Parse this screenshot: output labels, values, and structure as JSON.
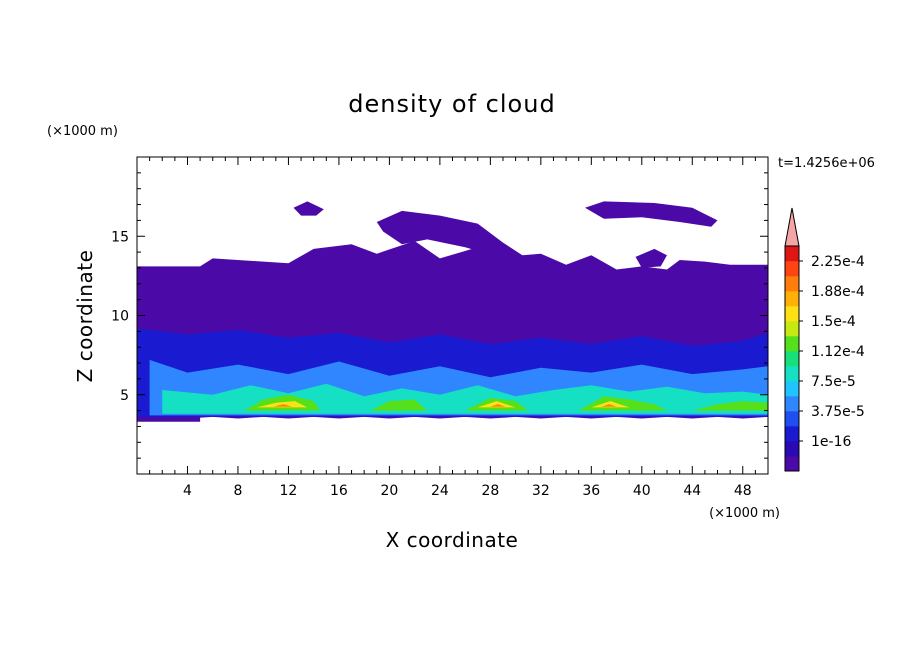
{
  "chart_data": {
    "type": "heatmap",
    "title": "density of cloud",
    "xlabel": "X coordinate",
    "ylabel": "Z coordinate",
    "x_unit": "(×1000 m)",
    "y_unit": "(×1000 m)",
    "time_label": "t=1.4256e+06",
    "xlim": [
      0,
      50
    ],
    "ylim": [
      0,
      20
    ],
    "xticks": [
      4,
      8,
      12,
      16,
      20,
      24,
      28,
      32,
      36,
      40,
      44,
      48
    ],
    "yticks": [
      5,
      10,
      15
    ],
    "colorbar": {
      "labels": [
        "2.25e-4",
        "1.88e-4",
        "1.5e-4",
        "1.12e-4",
        "7.5e-5",
        "3.75e-5",
        "1e-16"
      ],
      "colors": [
        "#4b0aa8",
        "#2a0ab4",
        "#1a1ad0",
        "#1f4ff0",
        "#2f86ff",
        "#21c4ff",
        "#16e0c4",
        "#17df7a",
        "#56e01c",
        "#c6e912",
        "#ffe012",
        "#ffb009",
        "#ff7d0a",
        "#ff4414",
        "#e01616"
      ],
      "over_color": "#f4a6a6"
    },
    "regions": [
      {
        "level": 0,
        "x": [
          0,
          0.5,
          1.5,
          3,
          3.5,
          3,
          5,
          6,
          12,
          14,
          17,
          19,
          22,
          24,
          27,
          29,
          32,
          34,
          36,
          38,
          40,
          42,
          43,
          45,
          47,
          50,
          50,
          48,
          46,
          44,
          42,
          40,
          38,
          36,
          34,
          32,
          30,
          28,
          26,
          24,
          22,
          20,
          18,
          16,
          14,
          12,
          10,
          8,
          6,
          4,
          3,
          2,
          1,
          0.5,
          0
        ],
        "y": [
          3.6,
          3.5,
          3.6,
          4.0,
          4.5,
          5.5,
          13.1,
          13.6,
          13.3,
          14.2,
          14.5,
          13.9,
          14.7,
          13.6,
          14.3,
          13.7,
          13.9,
          13.2,
          13.8,
          12.9,
          13.1,
          12.9,
          13.5,
          13.4,
          13.2,
          13.2,
          3.6,
          3.5,
          3.6,
          3.5,
          3.6,
          3.5,
          3.6,
          3.5,
          3.6,
          3.5,
          3.6,
          3.5,
          3.6,
          3.5,
          3.6,
          3.5,
          3.6,
          3.5,
          3.6,
          3.5,
          3.6,
          3.5,
          3.6,
          3.5,
          3.6,
          3.5,
          3.5,
          3.5,
          3.6
        ]
      },
      {
        "level": 0,
        "x": [
          0,
          5,
          5,
          0
        ],
        "y": [
          3.3,
          3.3,
          13.1,
          13.1
        ]
      },
      {
        "level": 0,
        "x": [
          12.4,
          13.5,
          14.8,
          14.2,
          13,
          12.4
        ],
        "y": [
          16.8,
          17.2,
          16.7,
          16.3,
          16.3,
          16.8
        ]
      },
      {
        "level": 0,
        "x": [
          19,
          21,
          24,
          27,
          29,
          31.5,
          32,
          32,
          30.5,
          29.5,
          26,
          23,
          21,
          19.5,
          19
        ],
        "y": [
          15.9,
          16.6,
          16.3,
          15.8,
          14.6,
          13.3,
          12.9,
          12.6,
          13.0,
          13.5,
          14.3,
          14.8,
          14.5,
          15.3,
          15.9
        ]
      },
      {
        "level": 0,
        "x": [
          35.5,
          37,
          41,
          44,
          46,
          45.5,
          43,
          40,
          37,
          35.5
        ],
        "y": [
          16.8,
          17.2,
          17.1,
          16.8,
          16.0,
          15.6,
          15.9,
          16.2,
          16.1,
          16.8
        ]
      },
      {
        "level": 0,
        "x": [
          39.5,
          41,
          42,
          41.5,
          40,
          39.5
        ],
        "y": [
          13.7,
          14.2,
          13.8,
          13.1,
          13.0,
          13.7
        ]
      },
      {
        "level": 1,
        "x": [
          0,
          4,
          8,
          12,
          16,
          20,
          24,
          28,
          32,
          36,
          40,
          44,
          48,
          50,
          50,
          0
        ],
        "y": [
          9.2,
          8.8,
          9.1,
          8.6,
          8.9,
          8.3,
          8.8,
          8.2,
          8.6,
          8.2,
          8.7,
          8.1,
          8.4,
          8.9,
          3.6,
          3.6
        ]
      },
      {
        "level": 2,
        "x": [
          1,
          4,
          8,
          12,
          16,
          20,
          24,
          28,
          32,
          36,
          40,
          44,
          48,
          50,
          50,
          1
        ],
        "y": [
          7.2,
          6.4,
          6.9,
          6.3,
          7.1,
          6.2,
          6.8,
          6.1,
          6.7,
          6.4,
          6.9,
          6.3,
          6.6,
          6.8,
          3.7,
          3.7
        ]
      },
      {
        "level": 3,
        "x": [
          2,
          6,
          9,
          12,
          15,
          18,
          21,
          24,
          27,
          30,
          33,
          36,
          39,
          42,
          45,
          48,
          50,
          50,
          2
        ],
        "y": [
          5.3,
          5.0,
          5.6,
          5.1,
          5.7,
          4.9,
          5.4,
          5.0,
          5.6,
          4.9,
          5.3,
          5.6,
          5.2,
          5.5,
          5.1,
          5.2,
          5.0,
          3.8,
          3.8
        ]
      },
      {
        "level": 4,
        "x": [
          8.5,
          10,
          12,
          14,
          14.5,
          8.5
        ],
        "y": [
          4.0,
          4.7,
          5.0,
          4.6,
          4.0,
          4.0
        ]
      },
      {
        "level": 4,
        "x": [
          18.5,
          20,
          22,
          23,
          18.5
        ],
        "y": [
          4.0,
          4.6,
          4.7,
          4.0,
          4.0
        ]
      },
      {
        "level": 4,
        "x": [
          26,
          28,
          30,
          31,
          26
        ],
        "y": [
          4.0,
          4.8,
          4.6,
          4.0,
          4.0
        ]
      },
      {
        "level": 4,
        "x": [
          35,
          37,
          39,
          41,
          42,
          35
        ],
        "y": [
          4.0,
          4.9,
          4.7,
          4.4,
          4.0,
          4.0
        ]
      },
      {
        "level": 4,
        "x": [
          44,
          46,
          48,
          50,
          50,
          44
        ],
        "y": [
          4.0,
          4.4,
          4.6,
          4.5,
          4.0,
          4.0
        ]
      },
      {
        "level": 5,
        "x": [
          9.5,
          11,
          12.5,
          13.5,
          9.5
        ],
        "y": [
          4.2,
          4.5,
          4.6,
          4.2,
          4.2
        ]
      },
      {
        "level": 5,
        "x": [
          27,
          28.5,
          30,
          27
        ],
        "y": [
          4.2,
          4.6,
          4.2,
          4.2
        ]
      },
      {
        "level": 5,
        "x": [
          36,
          37.5,
          39,
          36
        ],
        "y": [
          4.2,
          4.6,
          4.2,
          4.2
        ]
      },
      {
        "level": 6,
        "x": [
          10.8,
          11.6,
          12.3,
          10.8
        ],
        "y": [
          4.25,
          4.4,
          4.25,
          4.25
        ]
      },
      {
        "level": 6,
        "x": [
          28,
          28.6,
          29.2,
          28
        ],
        "y": [
          4.25,
          4.4,
          4.25,
          4.25
        ]
      },
      {
        "level": 6,
        "x": [
          36.8,
          37.4,
          38,
          36.8
        ],
        "y": [
          4.25,
          4.4,
          4.25,
          4.25
        ]
      }
    ]
  }
}
